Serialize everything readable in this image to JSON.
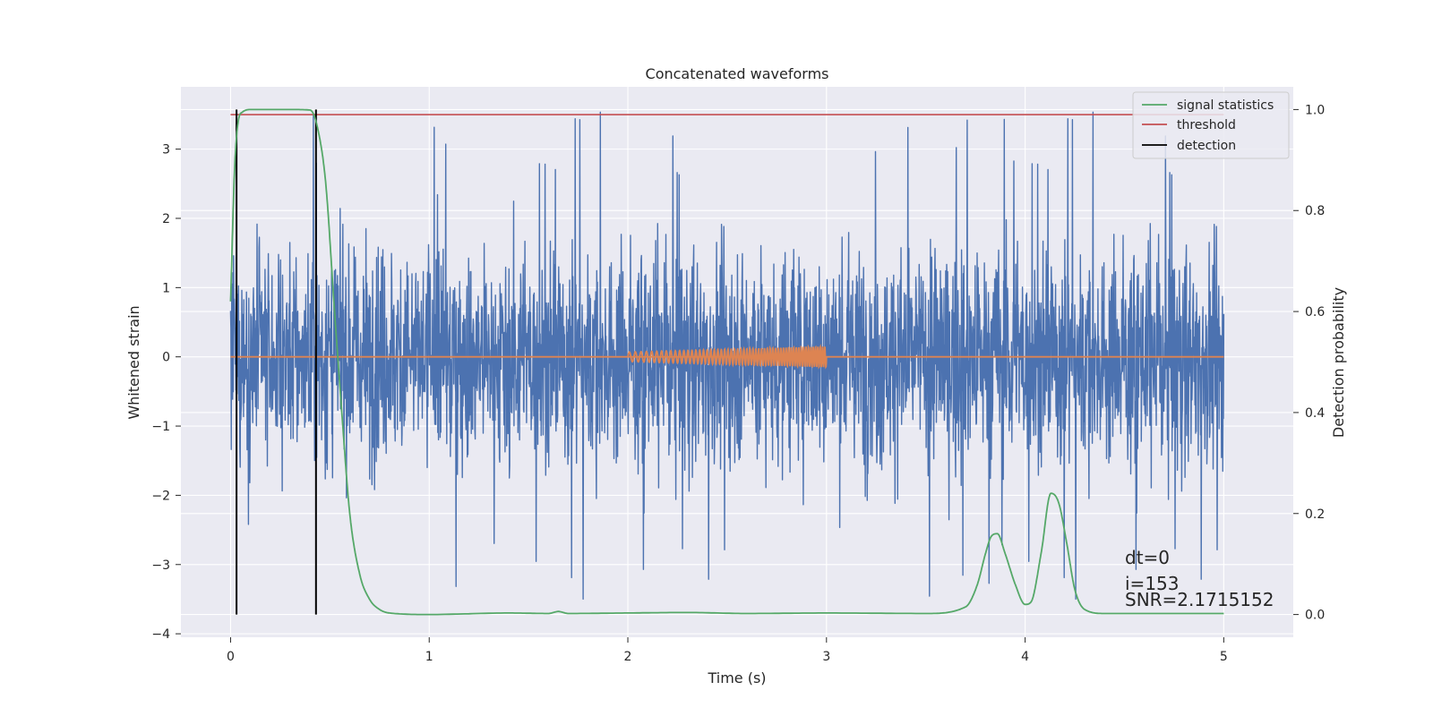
{
  "chart_data": {
    "type": "line",
    "title": "Concatenated waveforms",
    "xlabel": "Time (s)",
    "ylabel": "Whitened strain",
    "y2label": "Detection probability",
    "xlim": [
      -0.25,
      5.35
    ],
    "ylim": [
      -4.05,
      3.9
    ],
    "y2lim": [
      -0.045,
      1.045
    ],
    "xticks": [
      0,
      1,
      2,
      3,
      4,
      5
    ],
    "yticks": [
      -4,
      -3,
      -2,
      -1,
      0,
      1,
      2,
      3
    ],
    "y2ticks": [
      0.0,
      0.2,
      0.4,
      0.6,
      0.8,
      1.0
    ],
    "xtick_labels": [
      "0",
      "1",
      "2",
      "3",
      "4",
      "5"
    ],
    "ytick_labels": [
      "−4",
      "−3",
      "−2",
      "−1",
      "0",
      "1",
      "2",
      "3"
    ],
    "y2tick_labels": [
      "0.0",
      "0.2",
      "0.4",
      "0.6",
      "0.8",
      "1.0"
    ],
    "grid": true,
    "legend_position": "top-right",
    "colors": {
      "strain": "#4c72b0",
      "injection": "#dd8452",
      "signal": "#55a868",
      "threshold": "#c44e52",
      "detection": "#000000",
      "background": "#eaeaf2",
      "grid": "#ffffff"
    },
    "series": [
      {
        "name": "",
        "axis": "left",
        "kind": "whitened-strain-noise",
        "x_range": [
          0,
          5
        ],
        "typical_amplitude": 2.0,
        "max_abs": 3.6
      },
      {
        "name": "",
        "axis": "left",
        "kind": "injected-chirp",
        "x_range": [
          2.0,
          3.0
        ],
        "amplitude_start": 0.07,
        "amplitude_end": 0.15
      },
      {
        "name": "signal statistics",
        "axis": "right",
        "x": [
          0.0,
          0.02,
          0.04,
          0.06,
          0.1,
          0.2,
          0.3,
          0.4,
          0.44,
          0.48,
          0.52,
          0.56,
          0.6,
          0.65,
          0.7,
          0.75,
          0.8,
          1.0,
          1.4,
          1.6,
          1.65,
          1.7,
          2.0,
          2.3,
          2.6,
          3.0,
          3.5,
          3.7,
          3.76,
          3.8,
          3.83,
          3.86,
          3.9,
          3.95,
          4.0,
          4.03,
          4.08,
          4.13,
          4.17,
          4.21,
          4.25,
          4.3,
          4.4,
          5.0
        ],
        "y": [
          0.62,
          0.88,
          0.98,
          0.995,
          1.0,
          1.0,
          1.0,
          0.999,
          0.96,
          0.85,
          0.62,
          0.4,
          0.2,
          0.08,
          0.03,
          0.01,
          0.003,
          0.0,
          0.003,
          0.002,
          0.006,
          0.002,
          0.003,
          0.004,
          0.002,
          0.003,
          0.002,
          0.015,
          0.06,
          0.12,
          0.155,
          0.16,
          0.12,
          0.06,
          0.02,
          0.025,
          0.12,
          0.24,
          0.22,
          0.14,
          0.05,
          0.01,
          0.002,
          0.002
        ]
      },
      {
        "name": "threshold",
        "axis": "right",
        "x": [
          0,
          5
        ],
        "y": [
          0.99,
          0.99
        ]
      },
      {
        "name": "detection",
        "axis": "right",
        "vertical_lines_x": [
          0.03,
          0.43
        ],
        "y_range": [
          0.0,
          1.0
        ]
      }
    ],
    "annotations": [
      {
        "text": "dt=0"
      },
      {
        "text": "i=153"
      },
      {
        "text": "SNR=2.1715152"
      }
    ]
  }
}
